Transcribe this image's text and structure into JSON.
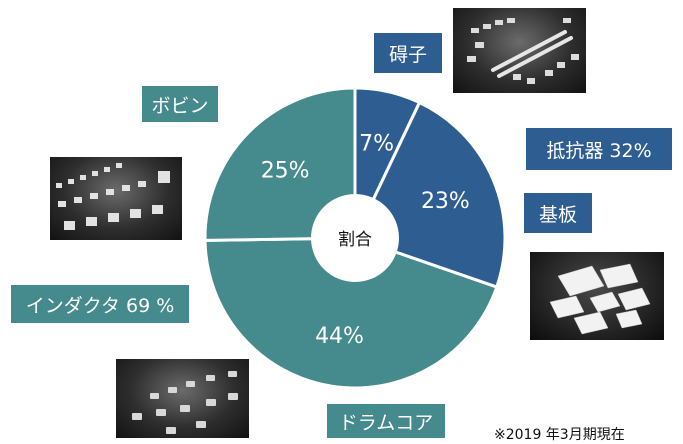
{
  "chart_data": {
    "type": "pie",
    "center_label": "割合",
    "slices": [
      {
        "value_label": "7%",
        "value": 7,
        "color": "#2e5d92"
      },
      {
        "value_label": "23%",
        "value": 23,
        "color": "#2e5d92"
      },
      {
        "value_label": "44%",
        "value": 44,
        "color": "#458a8c"
      },
      {
        "value_label": "25%",
        "value": 25,
        "color": "#458a8c"
      }
    ],
    "categories": [
      {
        "label": "碍子",
        "color": "#2e5d92"
      },
      {
        "label": "抵抗器 32%",
        "color": "#2e5d92"
      },
      {
        "label": "基板",
        "color": "#2e5d92"
      },
      {
        "label": "ボビン",
        "color": "#458a8c"
      },
      {
        "label": "インダクタ 69 %",
        "color": "#458a8c"
      },
      {
        "label": "ドラムコア",
        "color": "#458a8c"
      }
    ]
  },
  "footnote": "※2019 年3月期現在",
  "photos": [
    "insulator-parts-photo",
    "substrate-plates-photo",
    "bobbin-parts-photo",
    "drum-core-parts-photo"
  ]
}
